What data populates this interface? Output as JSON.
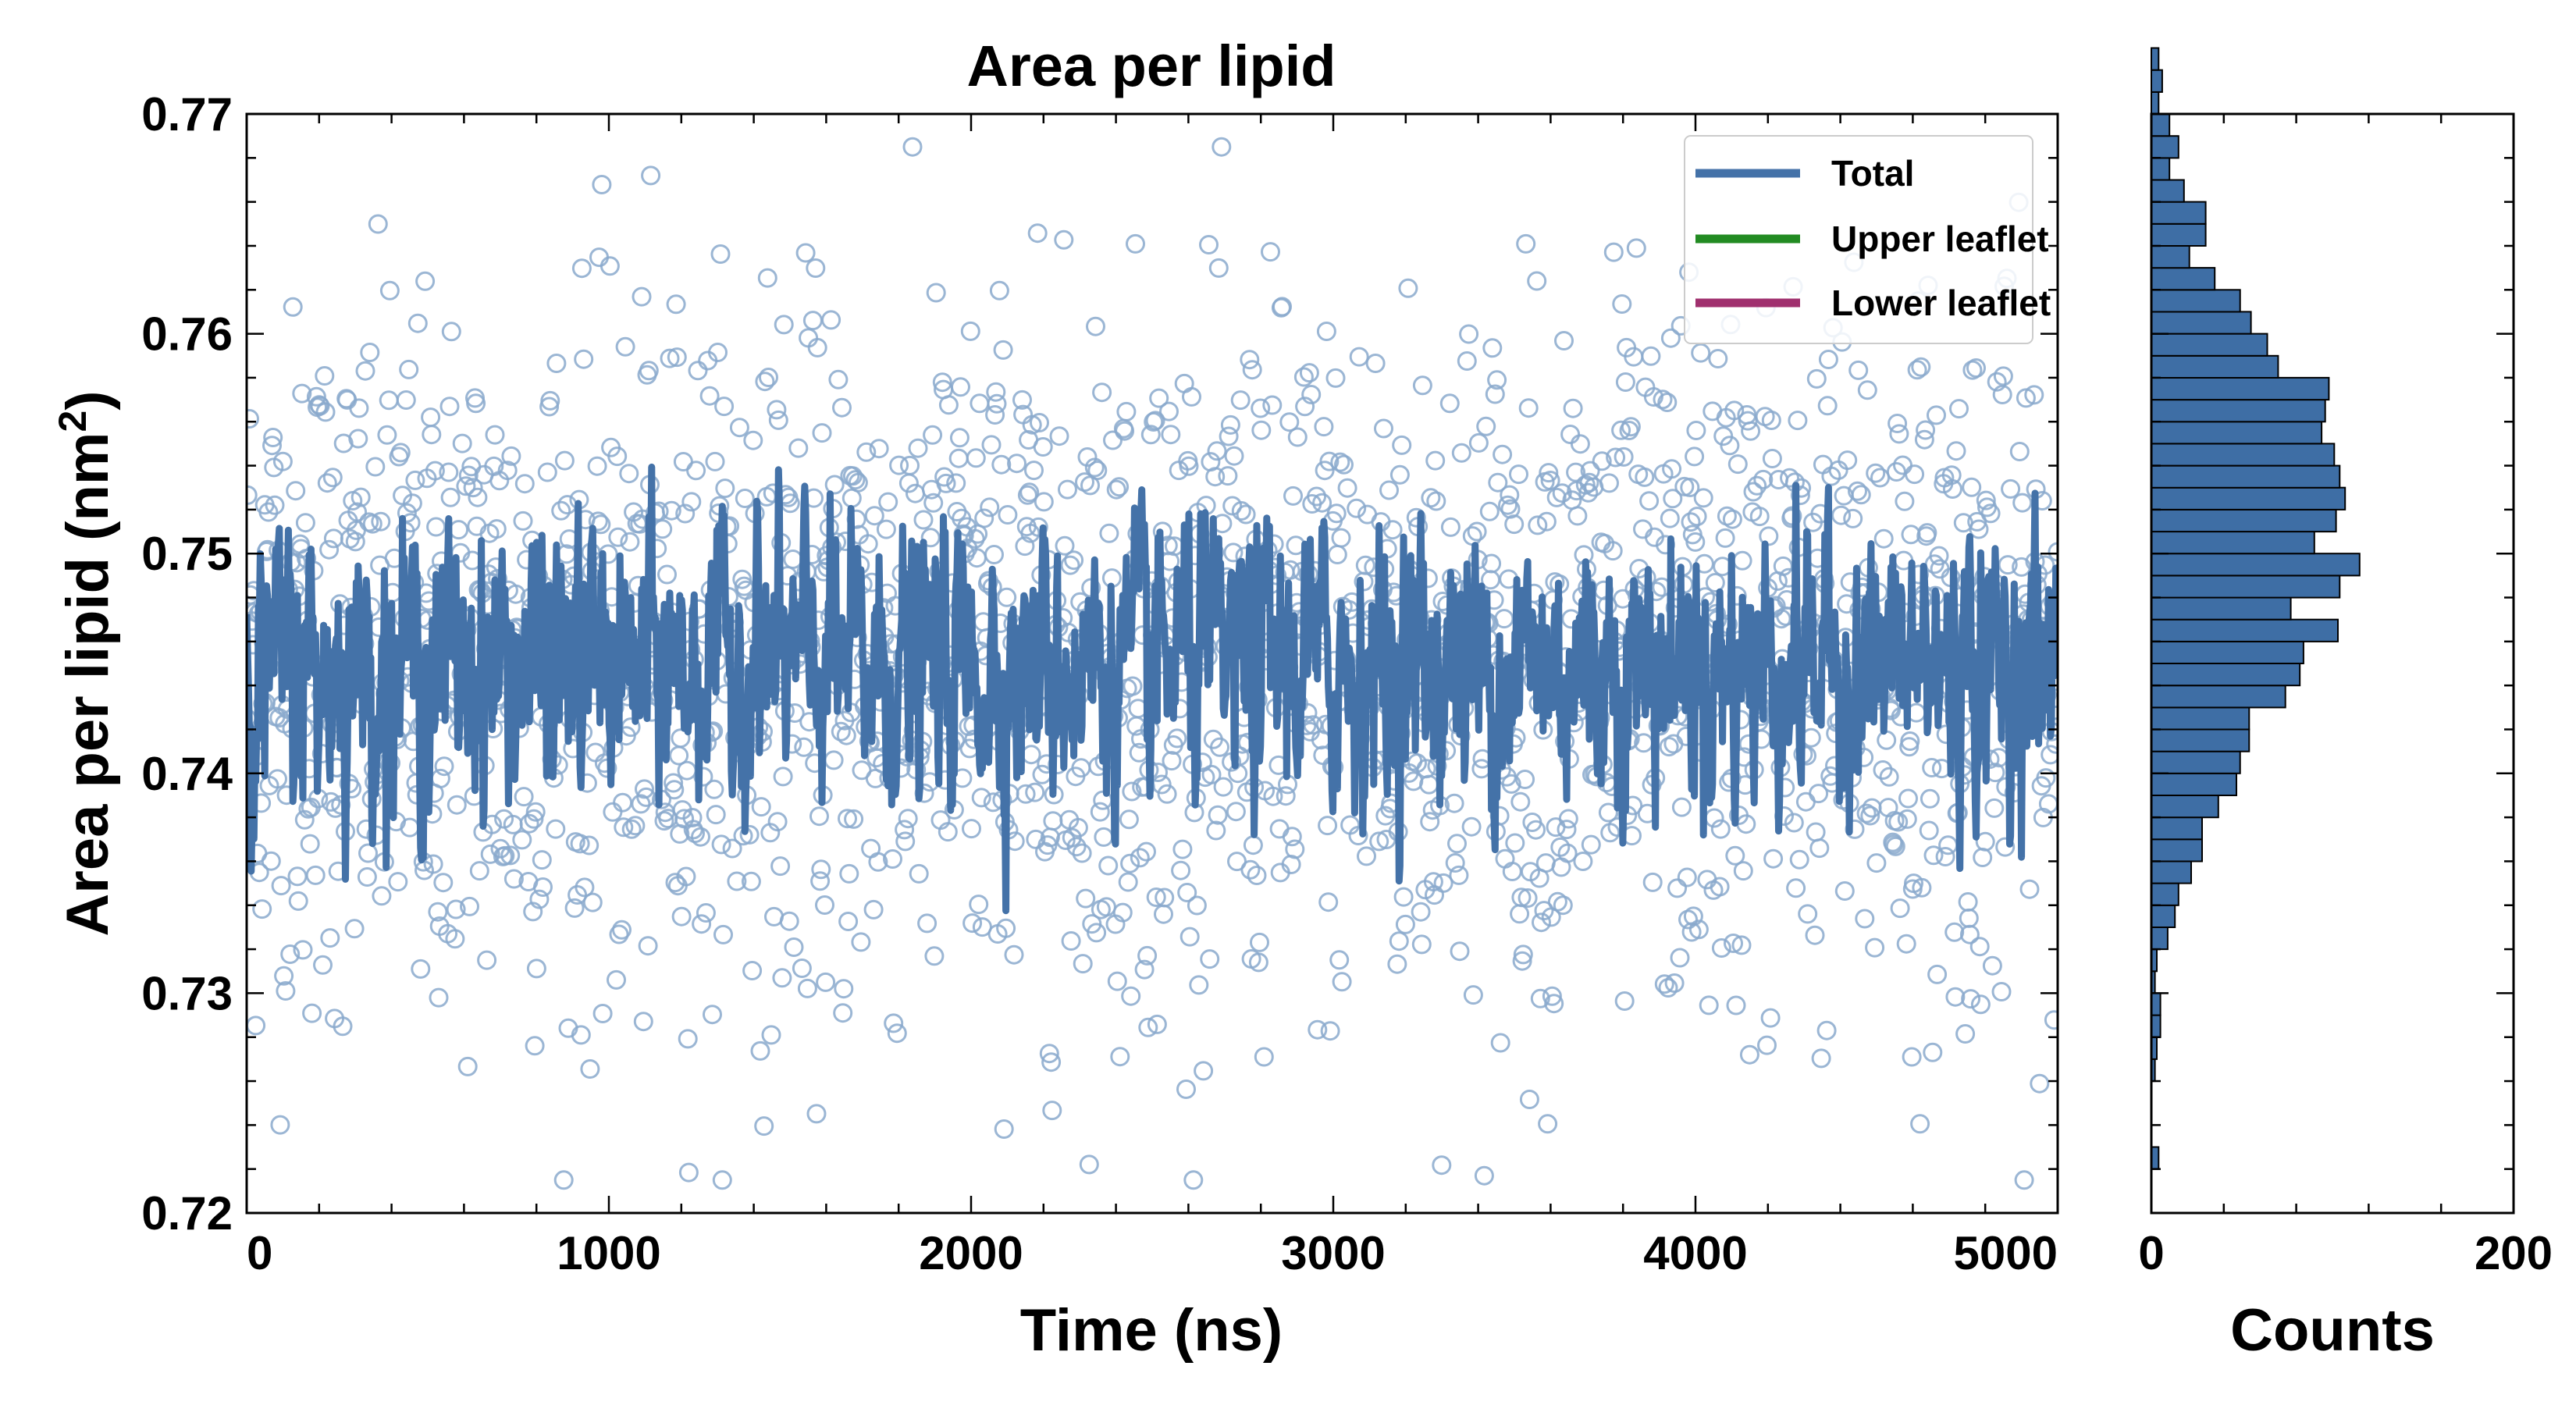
{
  "chart_data": [
    {
      "type": "scatter+line",
      "title": "Area per lipid",
      "xlabel": "Time (ns)",
      "ylabel": "Area per lipid (nm",
      "ylabel_sup": "2",
      "ylabel_end": ")",
      "xlim": [
        0,
        5000
      ],
      "ylim": [
        0.72,
        0.77
      ],
      "x_ticks": [
        0,
        1000,
        2000,
        3000,
        4000,
        5000
      ],
      "x_tick_labels": [
        "0",
        "1000",
        "2000",
        "3000",
        "4000",
        "5000"
      ],
      "y_ticks": [
        0.72,
        0.73,
        0.74,
        0.75,
        0.76,
        0.77
      ],
      "y_tick_labels": [
        "0.72",
        "0.73",
        "0.74",
        "0.75",
        "0.76",
        "0.77"
      ],
      "scatter_points": 2000,
      "scatter_mean": 0.745,
      "scatter_sd": 0.008,
      "line_points": 2000,
      "line_mean": 0.745,
      "line_sd": 0.003,
      "legend": {
        "placement": "top-right",
        "entries": [
          {
            "label": "Total",
            "color": "#4472a8"
          },
          {
            "label": "Upper leaflet",
            "color": "#228b22"
          },
          {
            "label": "Lower leaflet",
            "color": "#a0306e"
          }
        ]
      },
      "colors": {
        "scatter": "#8aa9cc",
        "line": "#4472a8"
      }
    },
    {
      "type": "histogram",
      "orientation": "horizontal",
      "xlabel": "Counts",
      "xlim": [
        0,
        200
      ],
      "x_ticks": [
        0,
        200
      ],
      "x_tick_labels": [
        "0",
        "200"
      ],
      "ylim": [
        0.72,
        0.77
      ],
      "bin_start": 0.722,
      "bin_width": 0.001,
      "counts": [
        4,
        0,
        0,
        0,
        2,
        3,
        5,
        5,
        2,
        3,
        9,
        13,
        15,
        22,
        28,
        28,
        37,
        47,
        49,
        54,
        54,
        74,
        82,
        84,
        103,
        77,
        104,
        115,
        90,
        102,
        107,
        104,
        101,
        94,
        96,
        98,
        70,
        64,
        55,
        49,
        35,
        21,
        30,
        30,
        18,
        10,
        15,
        10,
        4,
        6,
        4
      ]
    }
  ],
  "colors": {
    "bar_fill": "#3e6ea5",
    "bar_edge": "#000000"
  }
}
